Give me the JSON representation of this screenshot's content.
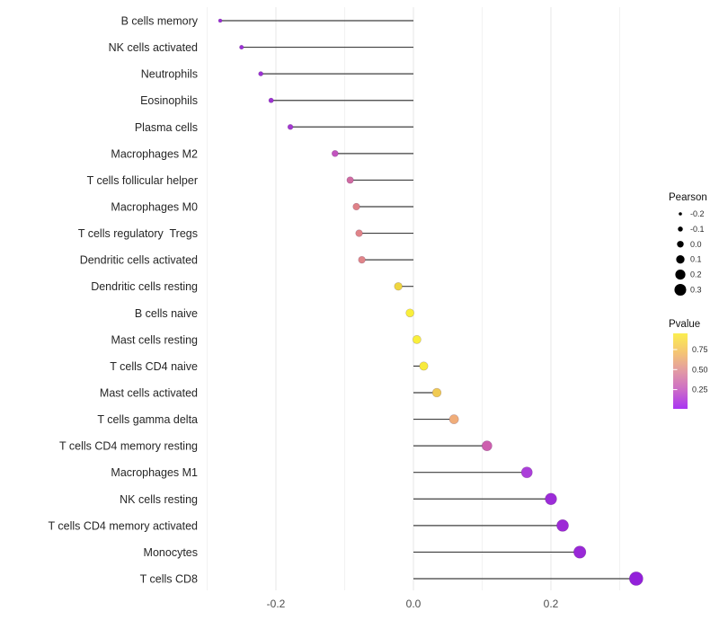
{
  "chart_data": {
    "type": "scatter",
    "subtype": "lollipop",
    "title": "",
    "xlabel": "",
    "ylabel": "",
    "xlim": [
      -0.31,
      0.345
    ],
    "grid": "vertical-only",
    "x_tick_labels": [
      "-0.2",
      "0.0",
      "0.2"
    ],
    "x_tick_values": [
      -0.2,
      0.0,
      0.2
    ],
    "gridline_values": [
      -0.3,
      -0.2,
      -0.1,
      0.0,
      0.1,
      0.2,
      0.3
    ],
    "points": [
      {
        "label": "B cells memory",
        "pearson": -0.281,
        "dot_color": "#9B2FD5"
      },
      {
        "label": "NK cells activated",
        "pearson": -0.25,
        "dot_color": "#9B2FD5"
      },
      {
        "label": "Neutrophils",
        "pearson": -0.222,
        "dot_color": "#9C31D4"
      },
      {
        "label": "Eosinophils",
        "pearson": -0.207,
        "dot_color": "#9E33D3"
      },
      {
        "label": "Plasma cells",
        "pearson": -0.179,
        "dot_color": "#A438D1"
      },
      {
        "label": "Macrophages M2",
        "pearson": -0.114,
        "dot_color": "#C254BE"
      },
      {
        "label": "T cells follicular helper",
        "pearson": -0.092,
        "dot_color": "#D06BA2"
      },
      {
        "label": "Macrophages M0",
        "pearson": -0.083,
        "dot_color": "#DF8288"
      },
      {
        "label": "T cells regulatory  Tregs",
        "pearson": -0.079,
        "dot_color": "#E08489"
      },
      {
        "label": "Dendritic cells activated",
        "pearson": -0.075,
        "dot_color": "#E08589"
      },
      {
        "label": "Dendritic cells resting",
        "pearson": -0.022,
        "dot_color": "#EFD640"
      },
      {
        "label": "B cells naive",
        "pearson": -0.005,
        "dot_color": "#F9EF3B"
      },
      {
        "label": "Mast cells resting",
        "pearson": 0.005,
        "dot_color": "#F9EF3B"
      },
      {
        "label": "T cells CD4 naive",
        "pearson": 0.015,
        "dot_color": "#F7EA3D"
      },
      {
        "label": "Mast cells activated",
        "pearson": 0.034,
        "dot_color": "#F0CA52"
      },
      {
        "label": "T cells gamma delta",
        "pearson": 0.059,
        "dot_color": "#F0AD79"
      },
      {
        "label": "T cells CD4 memory resting",
        "pearson": 0.107,
        "dot_color": "#CD5FAE"
      },
      {
        "label": "Macrophages M1",
        "pearson": 0.165,
        "dot_color": "#AB3FD9"
      },
      {
        "label": "NK cells resting",
        "pearson": 0.2,
        "dot_color": "#9C2CD8"
      },
      {
        "label": "T cells CD4 memory activated",
        "pearson": 0.217,
        "dot_color": "#9D2AD6"
      },
      {
        "label": "Monocytes",
        "pearson": 0.242,
        "dot_color": "#9928D7"
      },
      {
        "label": "T cells CD8",
        "pearson": 0.324,
        "dot_color": "#9320DA"
      }
    ],
    "size_legend": {
      "title": "Pearson",
      "entries": [
        "-0.2",
        "-0.1",
        "0.0",
        "0.1",
        "0.2",
        "0.3"
      ],
      "dot_color": "#000000"
    },
    "color_legend": {
      "title": "Pvalue",
      "tick_labels": [
        "0.75",
        "0.50",
        "0.25"
      ],
      "gradient_top_to_bottom": [
        "#FBEE4F",
        "#F5C573",
        "#E29AA4",
        "#CC6CC8",
        "#A935F2"
      ]
    },
    "style": {
      "stem_color": "#3F3F3F",
      "major_grid_color": "#E7E7E7",
      "minor_grid_color": "#F2F2F2",
      "background": "#FFFFFF"
    }
  }
}
